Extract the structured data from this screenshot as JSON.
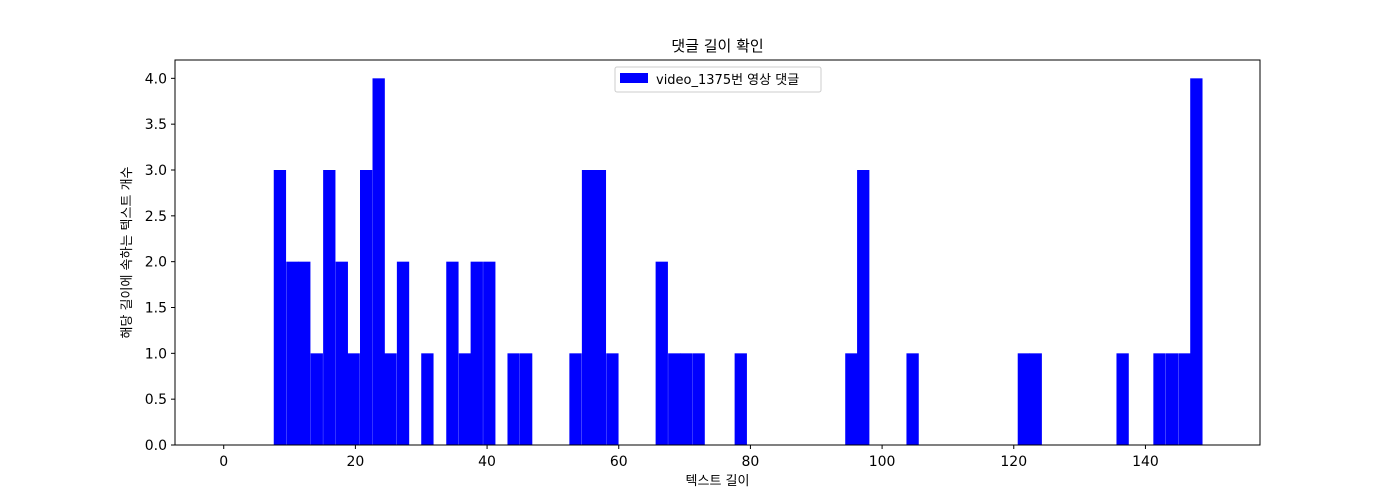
{
  "chart_data": {
    "type": "bar",
    "title": "댓글 길이 확인",
    "xlabel": "텍스트 길이",
    "ylabel": "해당 길이에 속하는 텍스트 개수",
    "xlim": [
      -7.4,
      157.4
    ],
    "ylim": [
      0,
      4.2
    ],
    "xticks": [
      0,
      20,
      40,
      60,
      80,
      100,
      120,
      140
    ],
    "yticks": [
      0.0,
      0.5,
      1.0,
      1.5,
      2.0,
      2.5,
      3.0,
      3.5,
      4.0
    ],
    "ytick_labels": [
      "0.0",
      "0.5",
      "1.0",
      "1.5",
      "2.0",
      "2.5",
      "3.0",
      "3.5",
      "4.0"
    ],
    "bin_width": 1.87,
    "legend": {
      "placement": "top-center",
      "entries": [
        "video_1375번 영상 댓글"
      ]
    },
    "grid": false,
    "series": [
      {
        "name": "video_1375번 영상 댓글",
        "color": "#0000ff",
        "bins": [
          {
            "x": 7.6,
            "y": 3
          },
          {
            "x": 9.5,
            "y": 2
          },
          {
            "x": 11.3,
            "y": 2
          },
          {
            "x": 13.2,
            "y": 1
          },
          {
            "x": 15.1,
            "y": 3
          },
          {
            "x": 17.0,
            "y": 2
          },
          {
            "x": 18.8,
            "y": 1
          },
          {
            "x": 20.7,
            "y": 3
          },
          {
            "x": 22.6,
            "y": 4
          },
          {
            "x": 24.4,
            "y": 1
          },
          {
            "x": 26.3,
            "y": 2
          },
          {
            "x": 30.0,
            "y": 1
          },
          {
            "x": 33.8,
            "y": 2
          },
          {
            "x": 35.7,
            "y": 1
          },
          {
            "x": 37.5,
            "y": 2
          },
          {
            "x": 39.4,
            "y": 2
          },
          {
            "x": 43.1,
            "y": 1
          },
          {
            "x": 45.0,
            "y": 1
          },
          {
            "x": 52.5,
            "y": 1
          },
          {
            "x": 54.4,
            "y": 3
          },
          {
            "x": 56.2,
            "y": 3
          },
          {
            "x": 58.1,
            "y": 1
          },
          {
            "x": 65.6,
            "y": 2
          },
          {
            "x": 67.5,
            "y": 1
          },
          {
            "x": 69.3,
            "y": 1
          },
          {
            "x": 71.2,
            "y": 1
          },
          {
            "x": 77.6,
            "y": 1
          },
          {
            "x": 94.4,
            "y": 1
          },
          {
            "x": 96.2,
            "y": 3
          },
          {
            "x": 103.7,
            "y": 1
          },
          {
            "x": 120.6,
            "y": 1
          },
          {
            "x": 122.4,
            "y": 1
          },
          {
            "x": 135.6,
            "y": 1
          },
          {
            "x": 141.2,
            "y": 1
          },
          {
            "x": 143.1,
            "y": 1
          },
          {
            "x": 145.0,
            "y": 1
          },
          {
            "x": 146.8,
            "y": 4
          }
        ]
      }
    ]
  }
}
